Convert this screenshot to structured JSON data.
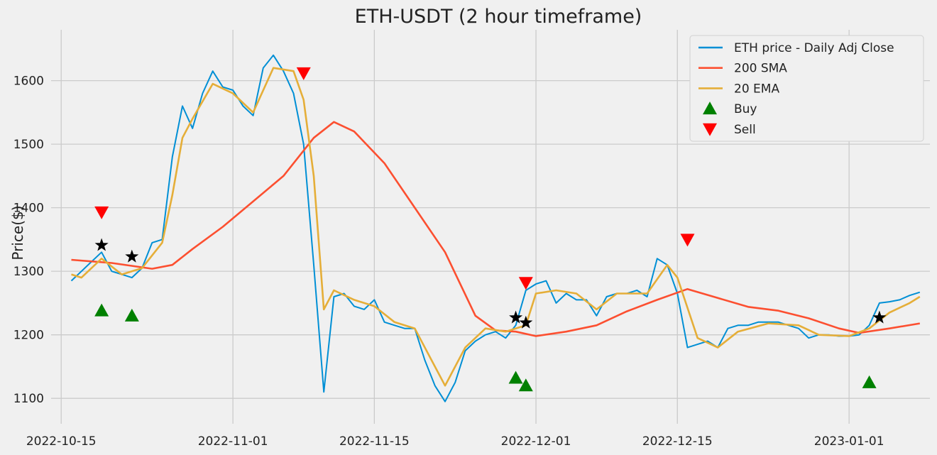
{
  "chart_data": {
    "type": "line",
    "title": "ETH-USDT (2 hour timeframe)",
    "ylabel": "Price($)",
    "xlabel": "",
    "x_start": "2022-10-16",
    "x_end": "2023-01-08",
    "xlim": [
      "2022-10-14",
      "2023-01-09"
    ],
    "ylim": [
      1060,
      1680
    ],
    "grid": true,
    "legend_position": "top-right",
    "xticks": [
      "2022-10-15",
      "2022-11-01",
      "2022-11-15",
      "2022-12-01",
      "2022-12-15",
      "2023-01-01"
    ],
    "yticks": [
      1100,
      1200,
      1300,
      1400,
      1500,
      1600
    ],
    "colors": {
      "price": "#008fd5",
      "sma": "#fc4f30",
      "ema": "#e5ae38",
      "buy": "#008000",
      "sell": "#ff0000",
      "star": "#000000"
    },
    "legend": [
      "ETH price - Daily Adj Close",
      "200 SMA",
      "20 EMA",
      "Buy",
      "Sell"
    ],
    "series": [
      {
        "name": "ETH price - Daily Adj Close",
        "key": "price",
        "points": [
          [
            "2022-10-16",
            1285
          ],
          [
            "2022-10-17",
            1300
          ],
          [
            "2022-10-18",
            1315
          ],
          [
            "2022-10-19",
            1330
          ],
          [
            "2022-10-20",
            1300
          ],
          [
            "2022-10-21",
            1295
          ],
          [
            "2022-10-22",
            1290
          ],
          [
            "2022-10-23",
            1305
          ],
          [
            "2022-10-24",
            1345
          ],
          [
            "2022-10-25",
            1350
          ],
          [
            "2022-10-26",
            1480
          ],
          [
            "2022-10-27",
            1560
          ],
          [
            "2022-10-28",
            1525
          ],
          [
            "2022-10-29",
            1580
          ],
          [
            "2022-10-30",
            1615
          ],
          [
            "2022-10-31",
            1590
          ],
          [
            "2022-11-01",
            1585
          ],
          [
            "2022-11-02",
            1560
          ],
          [
            "2022-11-03",
            1545
          ],
          [
            "2022-11-04",
            1620
          ],
          [
            "2022-11-05",
            1640
          ],
          [
            "2022-11-06",
            1615
          ],
          [
            "2022-11-07",
            1580
          ],
          [
            "2022-11-08",
            1500
          ],
          [
            "2022-11-09",
            1310
          ],
          [
            "2022-11-10",
            1110
          ],
          [
            "2022-11-11",
            1260
          ],
          [
            "2022-11-12",
            1265
          ],
          [
            "2022-11-13",
            1245
          ],
          [
            "2022-11-14",
            1240
          ],
          [
            "2022-11-15",
            1255
          ],
          [
            "2022-11-16",
            1220
          ],
          [
            "2022-11-17",
            1215
          ],
          [
            "2022-11-18",
            1210
          ],
          [
            "2022-11-19",
            1210
          ],
          [
            "2022-11-20",
            1160
          ],
          [
            "2022-11-21",
            1120
          ],
          [
            "2022-11-22",
            1095
          ],
          [
            "2022-11-23",
            1125
          ],
          [
            "2022-11-24",
            1175
          ],
          [
            "2022-11-25",
            1190
          ],
          [
            "2022-11-26",
            1200
          ],
          [
            "2022-11-27",
            1205
          ],
          [
            "2022-11-28",
            1195
          ],
          [
            "2022-11-29",
            1215
          ],
          [
            "2022-11-30",
            1270
          ],
          [
            "2022-12-01",
            1280
          ],
          [
            "2022-12-02",
            1285
          ],
          [
            "2022-12-03",
            1250
          ],
          [
            "2022-12-04",
            1265
          ],
          [
            "2022-12-05",
            1255
          ],
          [
            "2022-12-06",
            1255
          ],
          [
            "2022-12-07",
            1230
          ],
          [
            "2022-12-08",
            1260
          ],
          [
            "2022-12-09",
            1265
          ],
          [
            "2022-12-10",
            1265
          ],
          [
            "2022-12-11",
            1270
          ],
          [
            "2022-12-12",
            1260
          ],
          [
            "2022-12-13",
            1320
          ],
          [
            "2022-12-14",
            1310
          ],
          [
            "2022-12-15",
            1265
          ],
          [
            "2022-12-16",
            1180
          ],
          [
            "2022-12-17",
            1185
          ],
          [
            "2022-12-18",
            1190
          ],
          [
            "2022-12-19",
            1180
          ],
          [
            "2022-12-20",
            1210
          ],
          [
            "2022-12-21",
            1215
          ],
          [
            "2022-12-22",
            1215
          ],
          [
            "2022-12-23",
            1220
          ],
          [
            "2022-12-24",
            1220
          ],
          [
            "2022-12-25",
            1220
          ],
          [
            "2022-12-26",
            1215
          ],
          [
            "2022-12-27",
            1210
          ],
          [
            "2022-12-28",
            1195
          ],
          [
            "2022-12-29",
            1200
          ],
          [
            "2022-12-30",
            1200
          ],
          [
            "2022-12-31",
            1198
          ],
          [
            "2023-01-01",
            1198
          ],
          [
            "2023-01-02",
            1200
          ],
          [
            "2023-01-03",
            1215
          ],
          [
            "2023-01-04",
            1250
          ],
          [
            "2023-01-05",
            1252
          ],
          [
            "2023-01-06",
            1255
          ],
          [
            "2023-01-07",
            1262
          ],
          [
            "2023-01-08",
            1267
          ]
        ]
      },
      {
        "name": "200 SMA",
        "key": "sma",
        "points": [
          [
            "2022-10-16",
            1318
          ],
          [
            "2022-10-20",
            1313
          ],
          [
            "2022-10-24",
            1304
          ],
          [
            "2022-10-26",
            1310
          ],
          [
            "2022-10-28",
            1335
          ],
          [
            "2022-10-31",
            1370
          ],
          [
            "2022-11-03",
            1410
          ],
          [
            "2022-11-06",
            1450
          ],
          [
            "2022-11-09",
            1510
          ],
          [
            "2022-11-11",
            1535
          ],
          [
            "2022-11-13",
            1520
          ],
          [
            "2022-11-16",
            1470
          ],
          [
            "2022-11-19",
            1400
          ],
          [
            "2022-11-22",
            1330
          ],
          [
            "2022-11-25",
            1230
          ],
          [
            "2022-11-27",
            1207
          ],
          [
            "2022-11-29",
            1205
          ],
          [
            "2022-12-01",
            1198
          ],
          [
            "2022-12-04",
            1205
          ],
          [
            "2022-12-07",
            1215
          ],
          [
            "2022-12-10",
            1237
          ],
          [
            "2022-12-13",
            1255
          ],
          [
            "2022-12-16",
            1272
          ],
          [
            "2022-12-19",
            1258
          ],
          [
            "2022-12-22",
            1244
          ],
          [
            "2022-12-25",
            1238
          ],
          [
            "2022-12-28",
            1226
          ],
          [
            "2022-12-31",
            1210
          ],
          [
            "2023-01-02",
            1203
          ],
          [
            "2023-01-05",
            1210
          ],
          [
            "2023-01-08",
            1218
          ]
        ]
      },
      {
        "name": "20 EMA",
        "key": "ema",
        "points": [
          [
            "2022-10-16",
            1295
          ],
          [
            "2022-10-17",
            1290
          ],
          [
            "2022-10-19",
            1320
          ],
          [
            "2022-10-21",
            1295
          ],
          [
            "2022-10-23",
            1305
          ],
          [
            "2022-10-25",
            1345
          ],
          [
            "2022-10-26",
            1420
          ],
          [
            "2022-10-27",
            1510
          ],
          [
            "2022-10-28",
            1540
          ],
          [
            "2022-10-30",
            1595
          ],
          [
            "2022-11-01",
            1580
          ],
          [
            "2022-11-03",
            1550
          ],
          [
            "2022-11-05",
            1620
          ],
          [
            "2022-11-07",
            1615
          ],
          [
            "2022-11-08",
            1570
          ],
          [
            "2022-11-09",
            1450
          ],
          [
            "2022-11-10",
            1240
          ],
          [
            "2022-11-11",
            1270
          ],
          [
            "2022-11-13",
            1255
          ],
          [
            "2022-11-15",
            1245
          ],
          [
            "2022-11-17",
            1220
          ],
          [
            "2022-11-19",
            1210
          ],
          [
            "2022-11-21",
            1150
          ],
          [
            "2022-11-22",
            1120
          ],
          [
            "2022-11-24",
            1180
          ],
          [
            "2022-11-26",
            1210
          ],
          [
            "2022-11-28",
            1205
          ],
          [
            "2022-11-30",
            1215
          ],
          [
            "2022-12-01",
            1265
          ],
          [
            "2022-12-03",
            1270
          ],
          [
            "2022-12-05",
            1265
          ],
          [
            "2022-12-07",
            1240
          ],
          [
            "2022-12-09",
            1265
          ],
          [
            "2022-12-12",
            1265
          ],
          [
            "2022-12-14",
            1310
          ],
          [
            "2022-12-15",
            1290
          ],
          [
            "2022-12-17",
            1195
          ],
          [
            "2022-12-19",
            1180
          ],
          [
            "2022-12-21",
            1205
          ],
          [
            "2022-12-24",
            1218
          ],
          [
            "2022-12-27",
            1215
          ],
          [
            "2022-12-29",
            1200
          ],
          [
            "2023-01-01",
            1198
          ],
          [
            "2023-01-03",
            1210
          ],
          [
            "2023-01-05",
            1235
          ],
          [
            "2023-01-07",
            1250
          ],
          [
            "2023-01-08",
            1260
          ]
        ]
      }
    ],
    "buy_signals": [
      [
        "2022-10-19",
        1238
      ],
      [
        "2022-10-22",
        1230
      ],
      [
        "2022-11-29",
        1132
      ],
      [
        "2022-11-30",
        1120
      ],
      [
        "2023-01-03",
        1125
      ]
    ],
    "sell_signals": [
      [
        "2022-10-19",
        1393
      ],
      [
        "2022-11-08",
        1612
      ],
      [
        "2022-11-30",
        1282
      ],
      [
        "2022-12-16",
        1350
      ]
    ],
    "star_markers": [
      [
        "2022-10-19",
        1341
      ],
      [
        "2022-10-22",
        1323
      ],
      [
        "2022-11-29",
        1227
      ],
      [
        "2022-11-30",
        1219
      ],
      [
        "2023-01-04",
        1227
      ]
    ]
  }
}
